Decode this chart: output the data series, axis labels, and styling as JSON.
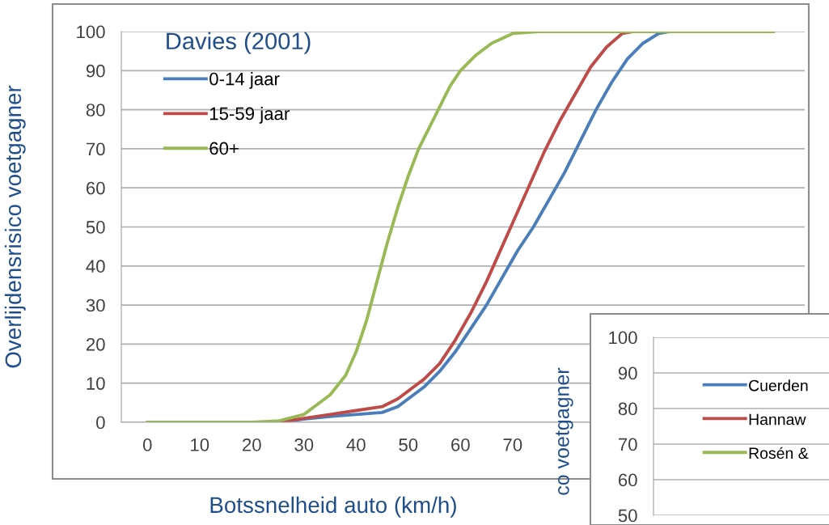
{
  "chart_data": [
    {
      "type": "line",
      "legend_title": "Davies (2001)",
      "xlabel": "Botssnelheid auto (km/h)",
      "ylabel": "Overlijdensrisico voetgagner",
      "xlim": [
        -5,
        126
      ],
      "xticks": [
        0,
        10,
        20,
        30,
        40,
        50,
        60,
        70
      ],
      "ylim": [
        0,
        100
      ],
      "yticks": [
        0,
        10,
        20,
        30,
        40,
        50,
        60,
        70,
        80,
        90,
        100
      ],
      "grid": "y",
      "legend": "top left",
      "marker": "none",
      "line_style": "solid",
      "series": [
        {
          "name": "0-14 jaar",
          "color": "#4a7ebb",
          "x": [
            0,
            25,
            30,
            35,
            40,
            45,
            48,
            50,
            53,
            56,
            59,
            62,
            65,
            68,
            71,
            74,
            77,
            80,
            83,
            86,
            89,
            92,
            95,
            98,
            100,
            120
          ],
          "values": [
            0,
            0,
            0.8,
            1.5,
            2,
            2.5,
            4,
            6,
            9,
            13,
            18,
            24,
            30,
            37,
            44,
            50,
            57,
            64,
            72,
            80,
            87,
            93,
            97,
            99.5,
            100,
            100
          ]
        },
        {
          "name": "15-59 jaar",
          "color": "#be4b48",
          "x": [
            0,
            25,
            30,
            35,
            40,
            45,
            48,
            50,
            53,
            56,
            59,
            62,
            65,
            68,
            70,
            73,
            76,
            79,
            82,
            85,
            88,
            91,
            93,
            120
          ],
          "values": [
            0,
            0,
            1,
            2,
            3,
            4,
            6,
            8,
            11,
            15,
            21,
            28,
            36,
            45,
            51,
            60,
            69,
            77,
            84,
            91,
            96,
            99.5,
            100,
            100
          ]
        },
        {
          "name": "60+",
          "color": "#98b954",
          "x": [
            0,
            20,
            25,
            30,
            35,
            38,
            40,
            42,
            44,
            46,
            48,
            50,
            52,
            55,
            58,
            60,
            63,
            66,
            70,
            75,
            120
          ],
          "values": [
            0,
            0,
            0.3,
            2,
            7,
            12,
            18,
            26,
            36,
            46,
            55,
            63,
            70,
            78,
            86,
            90,
            94,
            97,
            99.5,
            100,
            100
          ]
        }
      ]
    },
    {
      "type": "line",
      "ylabel": "co voetgagner",
      "ylim": [
        50,
        100
      ],
      "yticks": [
        50,
        60,
        70,
        80,
        90,
        100
      ],
      "grid": "y",
      "legend": "top right",
      "tick_labels": "y",
      "series": [
        {
          "name": "Cuerden",
          "color": "#4a7ebb"
        },
        {
          "name": "Hannaw",
          "color": "#be4b48"
        },
        {
          "name": "Rosén &",
          "color": "#98b954"
        }
      ]
    }
  ]
}
